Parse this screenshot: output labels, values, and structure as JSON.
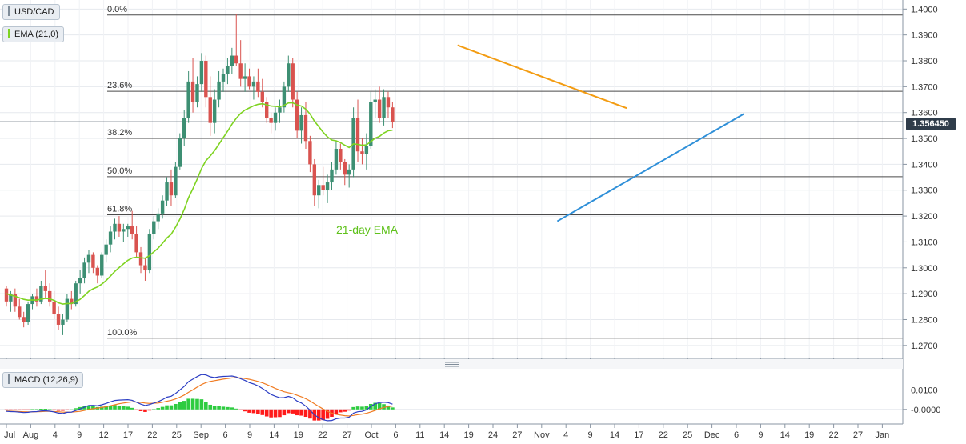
{
  "chart_data": {
    "type": "candlestick",
    "symbol_label": "USD/CAD",
    "ema_label": "EMA (21,0)",
    "macd_label": "MACD (12,26,9)",
    "last_price_label": "1.356450",
    "last_price": 1.35645,
    "annotation": "21-day EMA",
    "price_axis": {
      "range": [
        1.265,
        1.4035
      ],
      "ticks": [
        "1.2700",
        "1.2800",
        "1.2900",
        "1.3000",
        "1.3100",
        "1.3200",
        "1.3300",
        "1.3400",
        "1.3500",
        "1.3600",
        "1.3700",
        "1.3800",
        "1.3900",
        "1.4000"
      ]
    },
    "macd_axis": {
      "range": [
        -0.0075,
        0.0205
      ],
      "ticks": [
        {
          "v": 0.01,
          "label": "0.0100"
        },
        {
          "v": 0.0,
          "label": "-0.0000"
        }
      ]
    },
    "x_axis": {
      "labels": [
        "Jul",
        "Aug",
        "4",
        "9",
        "12",
        "17",
        "22",
        "25",
        "Sep",
        "6",
        "9",
        "14",
        "19",
        "22",
        "27",
        "Oct",
        "6",
        "11",
        "14",
        "19",
        "24",
        "27",
        "Nov",
        "4",
        "9",
        "14",
        "17",
        "22",
        "25",
        "Dec",
        "6",
        "9",
        "14",
        "19",
        "22",
        "27",
        "Jan"
      ]
    },
    "fibonacci": [
      {
        "label": "0.0%",
        "price": 1.3977
      },
      {
        "label": "23.6%",
        "price": 1.3682
      },
      {
        "label": "38.2%",
        "price": 1.35
      },
      {
        "label": "50.0%",
        "price": 1.3352
      },
      {
        "label": "61.8%",
        "price": 1.3205
      },
      {
        "label": "100.0%",
        "price": 1.2728
      }
    ],
    "trendlines": [
      {
        "color": "#f39c12",
        "from": {
          "bar": 104,
          "price": 1.386
        },
        "to": {
          "bar": 143,
          "price": 1.3617
        }
      },
      {
        "color": "#2e8fd8",
        "from": {
          "bar": 127,
          "price": 1.318
        },
        "to": {
          "bar": 170,
          "price": 1.3595
        }
      }
    ],
    "candles": [
      [
        1.292,
        1.293,
        1.285,
        1.287
      ],
      [
        1.287,
        1.291,
        1.283,
        1.29
      ],
      [
        1.29,
        1.292,
        1.283,
        1.285
      ],
      [
        1.285,
        1.288,
        1.28,
        1.281
      ],
      [
        1.281,
        1.283,
        1.277,
        1.279
      ],
      [
        1.279,
        1.287,
        1.278,
        1.286
      ],
      [
        1.286,
        1.29,
        1.284,
        1.289
      ],
      [
        1.289,
        1.292,
        1.285,
        1.287
      ],
      [
        1.287,
        1.295,
        1.286,
        1.293
      ],
      [
        1.293,
        1.299,
        1.288,
        1.291
      ],
      [
        1.291,
        1.294,
        1.285,
        1.287
      ],
      [
        1.287,
        1.291,
        1.28,
        1.282
      ],
      [
        1.282,
        1.285,
        1.276,
        1.278
      ],
      [
        1.278,
        1.282,
        1.274,
        1.28
      ],
      [
        1.28,
        1.29,
        1.279,
        1.288
      ],
      [
        1.288,
        1.291,
        1.284,
        1.286
      ],
      [
        1.286,
        1.295,
        1.285,
        1.294
      ],
      [
        1.294,
        1.299,
        1.29,
        1.296
      ],
      [
        1.296,
        1.304,
        1.294,
        1.302
      ],
      [
        1.302,
        1.307,
        1.298,
        1.305
      ],
      [
        1.305,
        1.306,
        1.298,
        1.3
      ],
      [
        1.3,
        1.301,
        1.294,
        1.297
      ],
      [
        1.297,
        1.306,
        1.296,
        1.305
      ],
      [
        1.305,
        1.311,
        1.302,
        1.309
      ],
      [
        1.309,
        1.316,
        1.306,
        1.314
      ],
      [
        1.314,
        1.319,
        1.311,
        1.317
      ],
      [
        1.317,
        1.32,
        1.312,
        1.314
      ],
      [
        1.314,
        1.317,
        1.31,
        1.315
      ],
      [
        1.315,
        1.317,
        1.312,
        1.316
      ],
      [
        1.316,
        1.322,
        1.311,
        1.313
      ],
      [
        1.313,
        1.316,
        1.304,
        1.306
      ],
      [
        1.306,
        1.308,
        1.298,
        1.301
      ],
      [
        1.301,
        1.304,
        1.295,
        1.299
      ],
      [
        1.299,
        1.315,
        1.298,
        1.313
      ],
      [
        1.313,
        1.32,
        1.311,
        1.318
      ],
      [
        1.318,
        1.323,
        1.315,
        1.321
      ],
      [
        1.321,
        1.328,
        1.319,
        1.326
      ],
      [
        1.326,
        1.335,
        1.324,
        1.333
      ],
      [
        1.333,
        1.338,
        1.324,
        1.328
      ],
      [
        1.328,
        1.341,
        1.327,
        1.339
      ],
      [
        1.339,
        1.352,
        1.338,
        1.35
      ],
      [
        1.35,
        1.361,
        1.347,
        1.358
      ],
      [
        1.358,
        1.376,
        1.356,
        1.372
      ],
      [
        1.372,
        1.381,
        1.36,
        1.364
      ],
      [
        1.364,
        1.374,
        1.362,
        1.371
      ],
      [
        1.371,
        1.383,
        1.368,
        1.38
      ],
      [
        1.38,
        1.382,
        1.362,
        1.366
      ],
      [
        1.366,
        1.374,
        1.351,
        1.356
      ],
      [
        1.356,
        1.369,
        1.352,
        1.365
      ],
      [
        1.365,
        1.376,
        1.362,
        1.372
      ],
      [
        1.372,
        1.377,
        1.368,
        1.375
      ],
      [
        1.375,
        1.381,
        1.371,
        1.378
      ],
      [
        1.378,
        1.385,
        1.375,
        1.382
      ],
      [
        1.382,
        1.398,
        1.378,
        1.379
      ],
      [
        1.379,
        1.388,
        1.37,
        1.373
      ],
      [
        1.373,
        1.379,
        1.368,
        1.374
      ],
      [
        1.374,
        1.377,
        1.369,
        1.37
      ],
      [
        1.37,
        1.374,
        1.365,
        1.372
      ],
      [
        1.372,
        1.377,
        1.366,
        1.368
      ],
      [
        1.368,
        1.373,
        1.362,
        1.364
      ],
      [
        1.364,
        1.366,
        1.356,
        1.358
      ],
      [
        1.358,
        1.36,
        1.352,
        1.356
      ],
      [
        1.356,
        1.362,
        1.353,
        1.36
      ],
      [
        1.36,
        1.365,
        1.356,
        1.362
      ],
      [
        1.362,
        1.372,
        1.36,
        1.37
      ],
      [
        1.37,
        1.382,
        1.368,
        1.379
      ],
      [
        1.379,
        1.381,
        1.362,
        1.365
      ],
      [
        1.365,
        1.368,
        1.35,
        1.353
      ],
      [
        1.353,
        1.362,
        1.348,
        1.359
      ],
      [
        1.359,
        1.364,
        1.346,
        1.349
      ],
      [
        1.349,
        1.351,
        1.337,
        1.34
      ],
      [
        1.34,
        1.342,
        1.324,
        1.328
      ],
      [
        1.328,
        1.334,
        1.323,
        1.332
      ],
      [
        1.332,
        1.339,
        1.328,
        1.33
      ],
      [
        1.33,
        1.336,
        1.325,
        1.333
      ],
      [
        1.333,
        1.341,
        1.33,
        1.338
      ],
      [
        1.338,
        1.349,
        1.336,
        1.346
      ],
      [
        1.346,
        1.348,
        1.338,
        1.341
      ],
      [
        1.341,
        1.342,
        1.332,
        1.336
      ],
      [
        1.336,
        1.34,
        1.331,
        1.338
      ],
      [
        1.338,
        1.362,
        1.335,
        1.358
      ],
      [
        1.358,
        1.365,
        1.341,
        1.345
      ],
      [
        1.345,
        1.35,
        1.34,
        1.344
      ],
      [
        1.344,
        1.352,
        1.338,
        1.347
      ],
      [
        1.347,
        1.368,
        1.346,
        1.364
      ],
      [
        1.364,
        1.369,
        1.358,
        1.365
      ],
      [
        1.365,
        1.37,
        1.356,
        1.358
      ],
      [
        1.358,
        1.369,
        1.355,
        1.366
      ],
      [
        1.366,
        1.368,
        1.358,
        1.362
      ],
      [
        1.362,
        1.364,
        1.354,
        1.3565
      ]
    ],
    "ema": [
      1.29,
      1.2895,
      1.289,
      1.2884,
      1.2878,
      1.2875,
      1.2876,
      1.2875,
      1.2879,
      1.2882,
      1.288,
      1.2874,
      1.2865,
      1.286,
      1.2862,
      1.2862,
      1.2869,
      1.2878,
      1.2893,
      1.2909,
      1.2919,
      1.2926,
      1.2937,
      1.2951,
      1.2968,
      1.2986,
      1.3001,
      1.3015,
      1.3029,
      1.3038,
      1.3041,
      1.3039,
      1.3037,
      1.3047,
      1.3062,
      1.3076,
      1.3095,
      1.3115,
      1.313,
      1.3157,
      1.3188,
      1.3225,
      1.3271,
      1.3306,
      1.3343,
      1.3384,
      1.3414,
      1.3432,
      1.3453,
      1.3478,
      1.3503,
      1.3528,
      1.3555,
      1.3578,
      1.3597,
      1.361,
      1.3618,
      1.3626,
      1.3632,
      1.3634,
      1.363,
      1.3625,
      1.3624,
      1.3622,
      1.3628,
      1.3637,
      1.3638,
      1.3629,
      1.3625,
      1.3613,
      1.3594,
      1.3567,
      1.3546,
      1.3524,
      1.3506,
      1.3494,
      1.3491,
      1.3484,
      1.3474,
      1.3465,
      1.3479,
      1.3477,
      1.3474,
      1.3475,
      1.3488,
      1.3501,
      1.3508,
      1.3521,
      1.353,
      1.3532
    ],
    "macd": [
      -0.001,
      -0.0011,
      -0.0012,
      -0.0014,
      -0.0016,
      -0.0015,
      -0.0012,
      -0.0011,
      -0.0008,
      -0.0007,
      -0.0009,
      -0.0013,
      -0.0019,
      -0.0021,
      -0.0015,
      -0.0014,
      -0.0006,
      0.0002,
      0.0012,
      0.002,
      0.0021,
      0.0019,
      0.0024,
      0.0031,
      0.0039,
      0.0046,
      0.0048,
      0.0049,
      0.005,
      0.0047,
      0.0037,
      0.0027,
      0.002,
      0.0025,
      0.0033,
      0.004,
      0.005,
      0.0063,
      0.0068,
      0.0082,
      0.01,
      0.0118,
      0.0143,
      0.0156,
      0.0169,
      0.018,
      0.0178,
      0.0168,
      0.0164,
      0.0168,
      0.017,
      0.0171,
      0.0172,
      0.0167,
      0.0158,
      0.0149,
      0.0138,
      0.0131,
      0.0121,
      0.0108,
      0.0092,
      0.0077,
      0.0068,
      0.006,
      0.0061,
      0.0067,
      0.006,
      0.0043,
      0.0033,
      0.0017,
      -0.0004,
      -0.0028,
      -0.0042,
      -0.0053,
      -0.0058,
      -0.0057,
      -0.0048,
      -0.0044,
      -0.0044,
      -0.004,
      -0.0019,
      -0.0012,
      -0.001,
      -0.0002,
      0.0015,
      0.0029,
      0.0035,
      0.0037,
      0.0035,
      0.0027
    ],
    "signal": [
      -0.0008,
      -0.0009,
      -0.001,
      -0.0011,
      -0.0012,
      -0.0013,
      -0.0013,
      -0.0012,
      -0.0011,
      -0.001,
      -0.001,
      -0.0011,
      -0.0012,
      -0.0014,
      -0.0014,
      -0.0014,
      -0.0012,
      -0.001,
      -0.0005,
      0.0,
      0.0004,
      0.0007,
      0.001,
      0.0014,
      0.0019,
      0.0024,
      0.0029,
      0.0033,
      0.0036,
      0.0039,
      0.0038,
      0.0036,
      0.0033,
      0.0031,
      0.0032,
      0.0033,
      0.0037,
      0.0042,
      0.0047,
      0.0054,
      0.0063,
      0.0074,
      0.0088,
      0.0101,
      0.0115,
      0.0128,
      0.0138,
      0.0144,
      0.0148,
      0.0152,
      0.0156,
      0.0159,
      0.0162,
      0.0163,
      0.0162,
      0.0159,
      0.0155,
      0.015,
      0.0144,
      0.0137,
      0.0128,
      0.0118,
      0.0108,
      0.0099,
      0.0091,
      0.0086,
      0.0081,
      0.0073,
      0.0065,
      0.0055,
      0.0043,
      0.0029,
      0.0015,
      0.0002,
      -0.001,
      -0.0019,
      -0.0025,
      -0.0029,
      -0.0032,
      -0.0034,
      -0.0031,
      -0.0027,
      -0.0024,
      -0.002,
      -0.0013,
      -0.0005,
      0.0003,
      0.001,
      0.0015,
      0.0017
    ]
  }
}
